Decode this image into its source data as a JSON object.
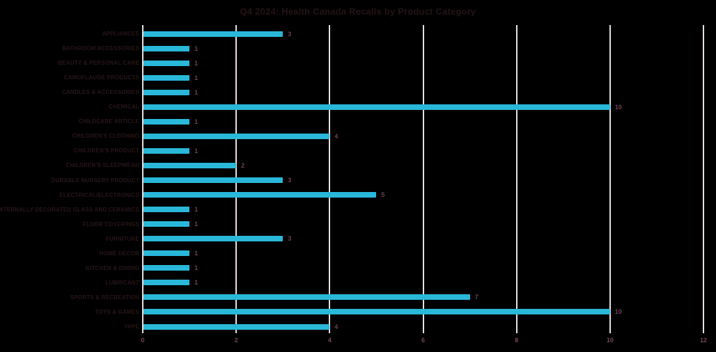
{
  "chart_data": {
    "type": "bar",
    "orientation": "horizontal",
    "title": "Q4 2024: Health Canada Recalls by Product Category",
    "categories": [
      "APPLIANCES",
      "BATHROOM ACCESSORIES",
      "BEAUTY & PERSONAL CARE",
      "CAMOFLAUGE PRODUCTS",
      "CANDLES & ACCESSORIES",
      "CHEMICAL",
      "CHILDCARE ARTICLE",
      "CHILDREN'S CLOTHING",
      "CHILDREN'S PRODUCT",
      "CHILDREN'S SLEEPWEAR",
      "DURABLE NURSERY PRODUCT",
      "ELECTRICAL/ELECTRONICS",
      "EXTERNALLY DECORATED GLASS AND CERAMICS",
      "FLOOR COVERINGS",
      "FURNITURE",
      "HOME DÉCOR",
      "KITCHEN & DINING",
      "LUBRICANT",
      "SPORTS & RECREATION",
      "TOYS & GAMES",
      "VAPE"
    ],
    "values": [
      3,
      1,
      1,
      1,
      1,
      10,
      1,
      4,
      1,
      2,
      3,
      5,
      1,
      1,
      3,
      1,
      1,
      1,
      7,
      10,
      4
    ],
    "value_labels": [
      "3",
      "1",
      "1",
      "1",
      "1",
      "10",
      "1",
      "4",
      "1",
      "2",
      "3",
      "5",
      "1",
      "1",
      "3",
      "1",
      "1",
      "1",
      "7",
      "10",
      "4"
    ],
    "xlabel": "",
    "ylabel": "",
    "xlim": [
      0,
      12
    ],
    "xticks": [
      0,
      2,
      4,
      6,
      8,
      10,
      12
    ],
    "xtick_labels": [
      "0",
      "2",
      "4",
      "6",
      "8",
      "10",
      "12"
    ],
    "grid": "vertical",
    "legend": "none",
    "colors": {
      "background": "#000000",
      "bar": "#29b8d9",
      "gridline": "#e9dfe2",
      "title_text": "#241316",
      "category_text": "#281519",
      "value_text": "#6d4253",
      "tick_text": "#744759"
    }
  }
}
